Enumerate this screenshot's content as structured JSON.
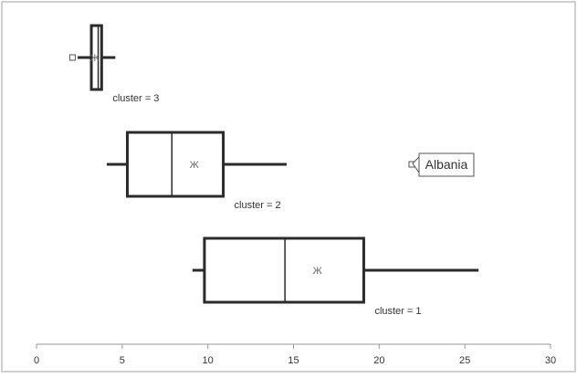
{
  "chart_data": {
    "type": "boxplot",
    "orientation": "horizontal",
    "xlim": [
      0,
      30
    ],
    "x_ticks": [
      "0",
      "5",
      "10",
      "15",
      "20",
      "25",
      "30"
    ],
    "x_tick_values": [
      0,
      5,
      10,
      15,
      20,
      25,
      30
    ],
    "grid": false,
    "colors": {
      "box": "#2b2b2b",
      "axis": "#999999",
      "frame": "#d0d0d0",
      "text": "#333333"
    },
    "groups": [
      {
        "label": "cluster = 3",
        "whisker_low": 2.4,
        "q1": 3.2,
        "median": 3.6,
        "q3": 3.8,
        "whisker_high": 4.6,
        "mean": 3.4,
        "outliers": [
          2.1
        ]
      },
      {
        "label": "cluster = 2",
        "whisker_low": 4.1,
        "q1": 5.3,
        "median": 7.9,
        "q3": 10.9,
        "whisker_high": 14.6,
        "mean": 9.2,
        "outliers": [
          21.9
        ]
      },
      {
        "label": "cluster = 1",
        "whisker_low": 9.1,
        "q1": 9.8,
        "median": 14.5,
        "q3": 19.1,
        "whisker_high": 25.8,
        "mean": 16.4,
        "outliers": []
      }
    ],
    "annotations": [
      {
        "text": "Albania",
        "group": "cluster = 2",
        "x": 21.9
      }
    ]
  }
}
